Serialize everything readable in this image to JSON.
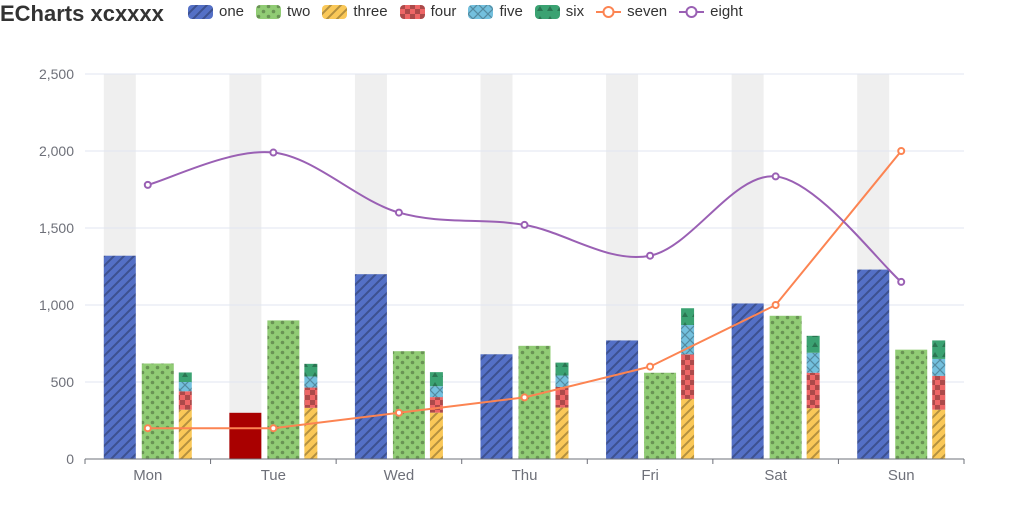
{
  "chart_data": {
    "type": "bar",
    "title": "ECharts xcxxxx",
    "categories": [
      "Mon",
      "Tue",
      "Wed",
      "Thu",
      "Fri",
      "Sat",
      "Sun"
    ],
    "ylim": [
      0,
      2500
    ],
    "yticks": [
      "0",
      "500",
      "1,000",
      "1,500",
      "2,000",
      "2,500"
    ],
    "grid": "horizontal",
    "legend_placement": "top",
    "series": [
      {
        "name": "one",
        "kind": "bar",
        "color": "#5470c6",
        "pattern": "diagonal-stripes",
        "group": "a",
        "values": [
          1320,
          300,
          1200,
          680,
          770,
          1010,
          1230
        ]
      },
      {
        "name": "two",
        "kind": "bar",
        "color": "#91cc75",
        "pattern": "dots",
        "group": "b",
        "values": [
          620,
          900,
          700,
          735,
          560,
          930,
          710
        ]
      },
      {
        "name": "three",
        "kind": "bar",
        "color": "#fac858",
        "pattern": "diagonal-stripes",
        "group": "c",
        "values": [
          320,
          332,
          301,
          334,
          390,
          330,
          320
        ]
      },
      {
        "name": "four",
        "kind": "bar",
        "color": "#ee6666",
        "pattern": "checker",
        "group": "c",
        "values": [
          120,
          132,
          101,
          134,
          290,
          230,
          220
        ]
      },
      {
        "name": "five",
        "kind": "bar",
        "color": "#73c0de",
        "pattern": "crosshatch",
        "group": "c",
        "values": [
          60,
          72,
          71,
          74,
          190,
          130,
          110
        ]
      },
      {
        "name": "six",
        "kind": "bar",
        "color": "#3ba272",
        "pattern": "triangles",
        "group": "c",
        "values": [
          62,
          82,
          91,
          84,
          109,
          110,
          120
        ]
      },
      {
        "name": "seven",
        "kind": "line",
        "color": "#fc8452",
        "smooth": false,
        "values": [
          200,
          200,
          300,
          400,
          600,
          1000,
          2000
        ]
      },
      {
        "name": "eight",
        "kind": "line",
        "color": "#9a60b4",
        "smooth": true,
        "values": [
          1780,
          1990,
          1600,
          1520,
          1320,
          1835,
          1150
        ]
      }
    ],
    "highlighted": {
      "series": "one",
      "category": "Tue",
      "color": "#a90000"
    },
    "axis_pointer": "shadow"
  }
}
